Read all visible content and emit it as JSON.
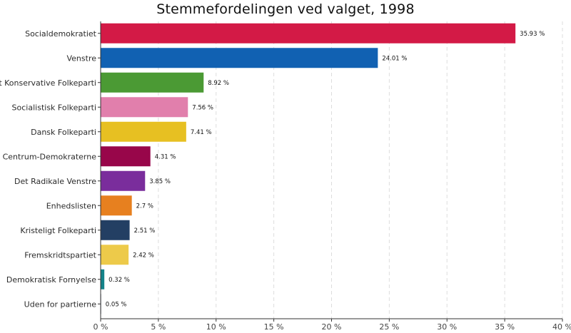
{
  "chart_data": {
    "type": "bar",
    "orientation": "horizontal",
    "title": "Stemmefordelingen ved valget, 1998",
    "xlabel": "",
    "ylabel": "",
    "xlim": [
      0,
      40
    ],
    "x_ticks": [
      0,
      5,
      10,
      15,
      20,
      25,
      30,
      35,
      40
    ],
    "x_tick_labels": [
      "0 %",
      "5 %",
      "10 %",
      "15 %",
      "20 %",
      "25 %",
      "30 %",
      "35 %",
      "40 %"
    ],
    "grid": "vertical dashed",
    "legend": "none",
    "categories": [
      "Socialdemokratiet",
      "Venstre",
      "Det Konservative Folkeparti",
      "Socialistisk Folkeparti",
      "Dansk Folkeparti",
      "Centrum-Demokraterne",
      "Det Radikale Venstre",
      "Enhedslisten",
      "Kristeligt Folkeparti",
      "Fremskridtspartiet",
      "Demokratisk Fornyelse",
      "Uden for partierne"
    ],
    "values": [
      35.93,
      24.01,
      8.92,
      7.56,
      7.41,
      4.31,
      3.85,
      2.7,
      2.51,
      2.42,
      0.32,
      0.05
    ],
    "value_labels": [
      "35.93 %",
      "24.01 %",
      "8.92 %",
      "7.56 %",
      "7.41 %",
      "4.31 %",
      "3.85 %",
      "2.7 %",
      "2.51 %",
      "2.42 %",
      "0.32 %",
      "0.05 %"
    ],
    "colors": [
      "#D31A46",
      "#1161B2",
      "#4B9A34",
      "#E17FAC",
      "#E7C022",
      "#98064A",
      "#7A2D9C",
      "#E7801F",
      "#233F63",
      "#EDCA4A",
      "#14838A",
      "#9BA3AB"
    ]
  }
}
